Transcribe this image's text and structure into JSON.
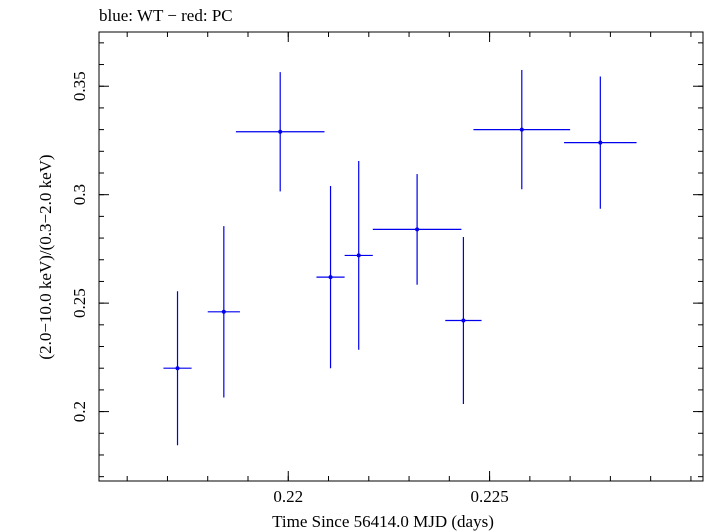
{
  "chart_data": {
    "type": "scatter",
    "title": "blue: WT − red: PC",
    "xlabel": "Time Since 56414.0 MJD (days)",
    "ylabel": "(2.0−10.0 keV)/(0.3−2.0 keV)",
    "xlim": [
      0.2153,
      0.2303
    ],
    "ylim": [
      0.168,
      0.375
    ],
    "x_ticks": [
      0.22,
      0.225
    ],
    "x_tick_labels": [
      "0.22",
      "0.225"
    ],
    "y_ticks": [
      0.2,
      0.25,
      0.3,
      0.35
    ],
    "y_tick_labels": [
      "0.2",
      "0.25",
      "0.3",
      "0.35"
    ],
    "grid": false,
    "series": [
      {
        "name": "WT",
        "color": "#0000ee",
        "points": [
          {
            "x": 0.21725,
            "xerr": 0.00035,
            "y": 0.22,
            "yerr": 0.0355
          },
          {
            "x": 0.2184,
            "xerr": 0.0004,
            "y": 0.246,
            "yerr": 0.0395
          },
          {
            "x": 0.2198,
            "xerr": 0.0011,
            "y": 0.329,
            "yerr": 0.0275
          },
          {
            "x": 0.22105,
            "xerr": 0.00035,
            "y": 0.262,
            "yerr": 0.042
          },
          {
            "x": 0.22175,
            "xerr": 0.00035,
            "y": 0.272,
            "yerr": 0.0435
          },
          {
            "x": 0.2232,
            "xerr": 0.0011,
            "y": 0.284,
            "yerr": 0.0255
          },
          {
            "x": 0.22435,
            "xerr": 0.00045,
            "y": 0.242,
            "yerr": 0.0385
          },
          {
            "x": 0.2258,
            "xerr": 0.0012,
            "y": 0.33,
            "yerr": 0.0275
          },
          {
            "x": 0.22775,
            "xerr": 0.0009,
            "y": 0.324,
            "yerr": 0.0305
          }
        ]
      }
    ]
  }
}
